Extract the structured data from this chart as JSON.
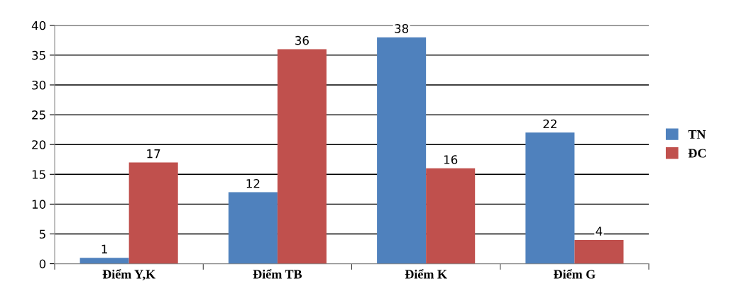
{
  "chart_data": {
    "type": "bar",
    "categories": [
      "Điểm Y,K",
      "Điểm TB",
      "Điểm K",
      "Điểm G"
    ],
    "series": [
      {
        "name": "TN",
        "color": "#4f81bd",
        "values": [
          1,
          12,
          38,
          22
        ]
      },
      {
        "name": "ĐC",
        "color": "#c0504d",
        "values": [
          17,
          36,
          16,
          4
        ]
      }
    ],
    "ylim": [
      0,
      40
    ],
    "yticks": [
      0,
      5,
      10,
      15,
      20,
      25,
      30,
      35,
      40
    ],
    "grid": "y",
    "legend": "right",
    "data_labels": true
  }
}
